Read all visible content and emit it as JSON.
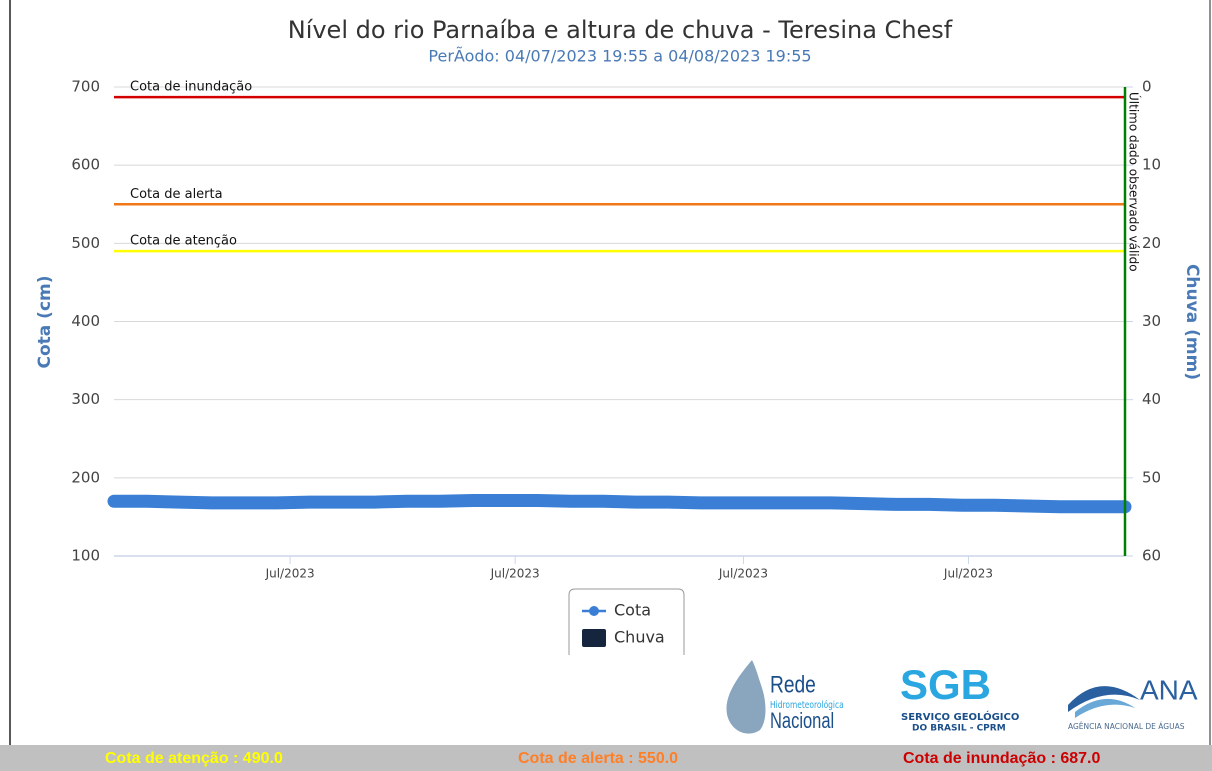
{
  "chart_data": {
    "type": "line",
    "title": "Nível do rio Parnaíba e altura de chuva - Teresina Chesf",
    "subtitle": "PerÃodo: 04/07/2023 19:55 a 04/08/2023 19:55",
    "ylabel": "Cota (cm)",
    "y2label": "Chuva (mm)",
    "x": [
      0,
      1,
      2,
      3,
      4,
      5,
      6,
      7,
      8,
      9,
      10,
      11,
      12,
      13,
      14,
      15,
      16,
      17,
      18,
      19,
      20,
      21,
      22,
      23,
      24,
      25,
      26,
      27,
      28,
      29,
      30,
      31
    ],
    "xlim": [
      0,
      31
    ],
    "xticks": [
      {
        "value": 5.4,
        "label": "Jul/2023"
      },
      {
        "value": 12.3,
        "label": "Jul/2023"
      },
      {
        "value": 19.3,
        "label": "Jul/2023"
      },
      {
        "value": 26.2,
        "label": "Jul/2023"
      }
    ],
    "ylim": [
      100,
      700
    ],
    "yticks": [
      100,
      200,
      300,
      400,
      500,
      600,
      700
    ],
    "y2lim": [
      60,
      0
    ],
    "y2ticks": [
      0,
      10,
      20,
      30,
      40,
      50,
      60
    ],
    "grid": true,
    "series": [
      {
        "name": "Cota",
        "color": "#3a7fd5",
        "values": [
          170,
          170,
          169,
          168,
          168,
          168,
          169,
          169,
          169,
          170,
          170,
          171,
          171,
          171,
          170,
          170,
          169,
          169,
          168,
          168,
          168,
          168,
          168,
          167,
          166,
          166,
          165,
          165,
          164,
          163,
          163,
          163
        ]
      },
      {
        "name": "Chuva",
        "color": "#14253d",
        "axis": "y2",
        "values": [
          null,
          null,
          null,
          null,
          null,
          null,
          null,
          null,
          null,
          null,
          null,
          null,
          null,
          null,
          null,
          null,
          null,
          null,
          null,
          null,
          null,
          null,
          null,
          null,
          null,
          null,
          null,
          null,
          null,
          null,
          null,
          null
        ]
      }
    ],
    "thresholds": [
      {
        "label": "Cota de inundação",
        "value": 687,
        "color": "#d40000"
      },
      {
        "label": "Cota de alerta",
        "value": 550,
        "color": "#f07818"
      },
      {
        "label": "Cota de atenção",
        "value": 490,
        "color": "#ffff00"
      }
    ],
    "marker": {
      "label": "Último dado observado válido",
      "x": 31,
      "color": "#008000"
    }
  },
  "footer": [
    {
      "text": "Cota de atenção : 490.0",
      "color": "#ffff00"
    },
    {
      "text": "Cota de alerta : 550.0",
      "color": "#ff7f27"
    },
    {
      "text": "Cota de inundação : 687.0",
      "color": "#cc0000"
    }
  ],
  "logos": {
    "rede": [
      "Rede",
      "Hidrometeorológica",
      "Nacional"
    ],
    "sgb": [
      "SGB",
      "SERVIÇO GEOLÓGICO",
      "DO BRASIL - CPRM"
    ],
    "ana": [
      "ANA",
      "AGÊNCIA NACIONAL DE ÁGUAS"
    ]
  }
}
